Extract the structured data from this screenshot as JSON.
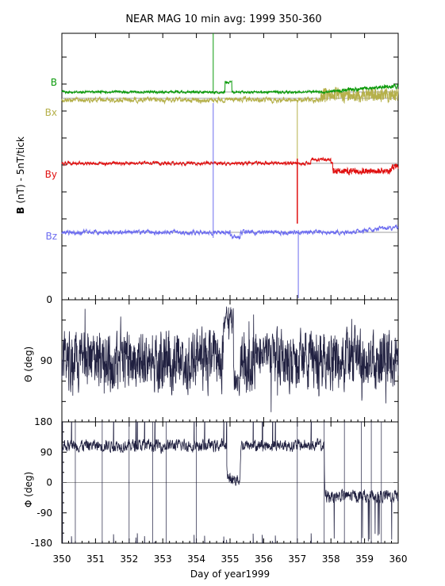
{
  "title": "NEAR MAG 10 min avg: 1999 350-360",
  "colors": {
    "B": "#0a9a0a",
    "Bx": "#b5b04a",
    "By": "#e01010",
    "Bz": "#6c6cf0",
    "angles": "#202040",
    "ref": "#7f7f7f"
  },
  "chart_data": [
    {
      "type": "line",
      "panel": "field",
      "ylabel_bold": "B",
      "ylabel_rest": "(nT) - 5nT/tick",
      "y_tick_label": "0",
      "x_range": [
        350,
        360
      ],
      "series": [
        {
          "name": "B",
          "color_key": "B",
          "baseline": 4.8,
          "noise": 0.15,
          "amp_note": "slow rise after 357.8"
        },
        {
          "name": "Bx",
          "color_key": "Bx",
          "baseline": 4.2,
          "noise": 0.2
        },
        {
          "name": "By",
          "color_key": "By",
          "baseline": 2.9,
          "noise": 0.15
        },
        {
          "name": "Bz",
          "color_key": "Bz",
          "baseline": 1.45,
          "noise": 0.18
        }
      ]
    },
    {
      "type": "line",
      "panel": "theta",
      "ylabel": "Θ (deg)",
      "y_ticks": [
        "90"
      ],
      "ylim": [
        0,
        180
      ],
      "x_range": [
        350,
        360
      ]
    },
    {
      "type": "line",
      "panel": "phi",
      "ylabel": "Φ (deg)",
      "y_ticks": [
        "180",
        "90",
        "0",
        "-90",
        "-180"
      ],
      "ylim": [
        -180,
        180
      ],
      "x_range": [
        350,
        360
      ]
    }
  ],
  "x_ticks": [
    "350",
    "351",
    "352",
    "353",
    "354",
    "355",
    "356",
    "357",
    "358",
    "359",
    "360"
  ],
  "xlabel": "Day of year1999"
}
